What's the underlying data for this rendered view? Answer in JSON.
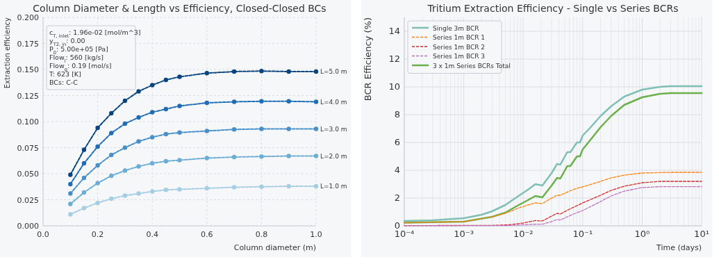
{
  "chart_data": [
    {
      "type": "line",
      "title": "Column Diameter & Length vs Efficiency, Closed-Closed BCs",
      "xlabel": "Column diameter (m)",
      "ylabel": "Extraction efficiency",
      "x": [
        0.1,
        0.15,
        0.2,
        0.25,
        0.3,
        0.35,
        0.4,
        0.45,
        0.5,
        0.6,
        0.7,
        0.8,
        0.9,
        1.0
      ],
      "series": [
        {
          "name": "L=5.0 m",
          "color": "#08457e",
          "values": [
            0.049,
            0.073,
            0.094,
            0.108,
            0.12,
            0.129,
            0.135,
            0.14,
            0.143,
            0.1465,
            0.148,
            0.1485,
            0.148,
            0.148
          ]
        },
        {
          "name": "L=4.0 m",
          "color": "#1f6db5",
          "values": [
            0.04,
            0.06,
            0.076,
            0.089,
            0.098,
            0.104,
            0.109,
            0.112,
            0.115,
            0.118,
            0.119,
            0.1195,
            0.1195,
            0.119
          ]
        },
        {
          "name": "L=3.0 m",
          "color": "#4a90c8",
          "values": [
            0.031,
            0.046,
            0.058,
            0.068,
            0.075,
            0.081,
            0.085,
            0.088,
            0.0895,
            0.091,
            0.0925,
            0.093,
            0.093,
            0.093
          ]
        },
        {
          "name": "L=2.0 m",
          "color": "#6aaed6",
          "values": [
            0.021,
            0.032,
            0.041,
            0.048,
            0.053,
            0.057,
            0.06,
            0.062,
            0.063,
            0.065,
            0.066,
            0.0665,
            0.067,
            0.067
          ]
        },
        {
          "name": "L=1.0 m",
          "color": "#a6cee3",
          "values": [
            0.011,
            0.017,
            0.022,
            0.026,
            0.029,
            0.031,
            0.033,
            0.0345,
            0.035,
            0.036,
            0.037,
            0.0375,
            0.038,
            0.038
          ]
        }
      ],
      "xlim": [
        0,
        1
      ],
      "xticks": [
        {
          "value": 0,
          "label": "0.0"
        },
        {
          "value": 0.2,
          "label": "0.2"
        },
        {
          "value": 0.4,
          "label": "0.4"
        },
        {
          "value": 0.6,
          "label": "0.6"
        },
        {
          "value": 0.8,
          "label": "0.8"
        },
        {
          "value": 1,
          "label": "1.0"
        }
      ],
      "ylim": [
        0,
        0.2
      ],
      "yticks": [
        {
          "value": 0,
          "label": "0.000"
        },
        {
          "value": 0.025,
          "label": "0.025"
        },
        {
          "value": 0.05,
          "label": "0.050"
        },
        {
          "value": 0.075,
          "label": "0.075"
        },
        {
          "value": 0.1,
          "label": "0.100"
        },
        {
          "value": 0.125,
          "label": "0.125"
        },
        {
          "value": 0.15,
          "label": "0.150"
        },
        {
          "value": 0.175,
          "label": "0.175"
        },
        {
          "value": 0.2,
          "label": "0.200"
        }
      ],
      "grid": true,
      "marker": "circle",
      "line_style": "dashed",
      "annotations": [
        "c$_{T, inlet}$: 1.96e-02 [mol/m^3]",
        "y$_{T2, in}$: 0.00",
        "P$_{0}$: 5.00e+05 [Pa]",
        "Flow$_{l}$: 560 [kg/s]",
        "Flow$_{g}$: 0.19 [mol/s]",
        "T: 623 [K]",
        "BCs: C-C"
      ]
    },
    {
      "type": "line",
      "title": "Tritium Extraction Efficiency - Single vs Series BCRs",
      "xlabel": "Time (days)",
      "ylabel": "BCR Efficiency (%)",
      "log": "x",
      "series": [
        {
          "name": "Single 3m BCR",
          "color": "#7fbfb5",
          "line_style": "solid",
          "x": [
            0.0001,
            0.0003,
            0.001,
            0.002,
            0.003,
            0.005,
            0.008,
            0.012,
            0.016,
            0.021,
            0.03,
            0.037,
            0.042,
            0.055,
            0.062,
            0.08,
            0.09,
            0.1,
            0.13,
            0.2,
            0.3,
            0.5,
            1,
            2,
            3,
            10
          ],
          "values": [
            0.35,
            0.4,
            0.55,
            0.8,
            1.05,
            1.5,
            2.1,
            2.6,
            3.0,
            2.9,
            3.8,
            4.45,
            4.4,
            5.3,
            5.3,
            6.0,
            6.0,
            6.5,
            7.0,
            7.9,
            8.6,
            9.3,
            9.8,
            10.0,
            10.05,
            10.05
          ]
        },
        {
          "name": "Series 1m BCR 1",
          "color": "#ff7f0e",
          "line_style": "dashed",
          "x": [
            0.0001,
            0.001,
            0.003,
            0.005,
            0.008,
            0.012,
            0.016,
            0.021,
            0.03,
            0.037,
            0.042,
            0.06,
            0.08,
            0.1,
            0.2,
            0.3,
            0.5,
            1,
            3,
            10
          ],
          "values": [
            0.22,
            0.3,
            0.65,
            0.9,
            1.25,
            1.5,
            1.65,
            1.6,
            2.0,
            2.2,
            2.2,
            2.5,
            2.7,
            2.8,
            3.2,
            3.45,
            3.65,
            3.8,
            3.85,
            3.85
          ]
        },
        {
          "name": "Series 1m BCR 2",
          "color": "#d62728",
          "line_style": "dashed",
          "x": [
            0.0001,
            0.003,
            0.006,
            0.01,
            0.016,
            0.021,
            0.03,
            0.037,
            0.042,
            0.06,
            0.08,
            0.1,
            0.2,
            0.3,
            0.5,
            1,
            2,
            10
          ],
          "values": [
            0.02,
            0.03,
            0.08,
            0.2,
            0.38,
            0.35,
            0.7,
            0.9,
            0.85,
            1.2,
            1.45,
            1.65,
            2.2,
            2.55,
            2.85,
            3.1,
            3.2,
            3.2
          ]
        },
        {
          "name": "Series 1m BCR 3",
          "color": "#c06fc0",
          "line_style": "dashed",
          "x": [
            0.0001,
            0.005,
            0.01,
            0.016,
            0.021,
            0.03,
            0.037,
            0.042,
            0.06,
            0.08,
            0.1,
            0.2,
            0.3,
            0.5,
            1,
            2,
            10
          ],
          "values": [
            0.01,
            0.02,
            0.07,
            0.12,
            0.12,
            0.3,
            0.45,
            0.42,
            0.72,
            0.95,
            1.1,
            1.75,
            2.15,
            2.5,
            2.75,
            2.82,
            2.82
          ]
        },
        {
          "name": "3 x 1m Series BCRs Total",
          "color": "#6ab04c",
          "line_style": "solid",
          "x": [
            0.0001,
            0.001,
            0.003,
            0.005,
            0.008,
            0.012,
            0.016,
            0.021,
            0.03,
            0.037,
            0.042,
            0.055,
            0.062,
            0.08,
            0.09,
            0.1,
            0.13,
            0.2,
            0.3,
            0.5,
            1,
            2,
            3,
            10
          ],
          "values": [
            0.22,
            0.3,
            0.65,
            0.95,
            1.45,
            1.85,
            2.15,
            2.05,
            2.9,
            3.45,
            3.4,
            4.3,
            4.3,
            5.0,
            5.0,
            5.5,
            6.1,
            7.1,
            7.9,
            8.7,
            9.25,
            9.5,
            9.55,
            9.55
          ]
        }
      ],
      "xlim": [
        0.0001,
        10
      ],
      "xticks": [
        {
          "value": 0.0001,
          "label": "10⁻⁴"
        },
        {
          "value": 0.001,
          "label": "10⁻³"
        },
        {
          "value": 0.01,
          "label": "10⁻²"
        },
        {
          "value": 0.1,
          "label": "10⁻¹"
        },
        {
          "value": 1,
          "label": "10⁰"
        },
        {
          "value": 10,
          "label": "10¹"
        }
      ],
      "ylim": [
        0,
        15
      ],
      "yticks": [
        0,
        2,
        4,
        6,
        8,
        10,
        12,
        14
      ],
      "grid": true,
      "legend": "top left",
      "marker": "none"
    }
  ]
}
